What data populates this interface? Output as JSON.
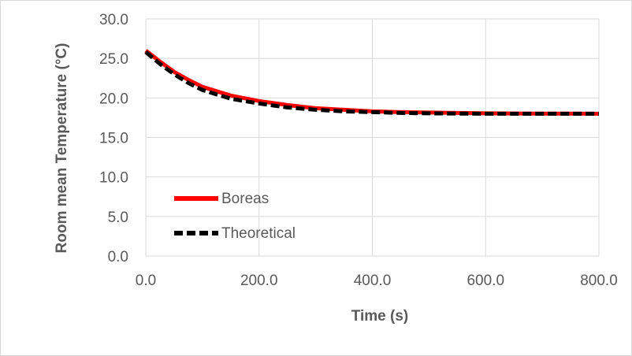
{
  "chart_data": {
    "type": "line",
    "xlabel": "Time (s)",
    "ylabel": "Room mean Temperature (°C)",
    "xlim": [
      0,
      800
    ],
    "ylim": [
      0,
      30
    ],
    "xticks": [
      "0.0",
      "200.0",
      "400.0",
      "600.0",
      "800.0"
    ],
    "yticks": [
      "0.0",
      "5.0",
      "10.0",
      "15.0",
      "20.0",
      "25.0",
      "30.0"
    ],
    "grid": true,
    "legend_position": "left",
    "series": [
      {
        "name": "Boreas",
        "color": "#ff0000",
        "style": "solid",
        "x": [
          0,
          25,
          50,
          75,
          100,
          150,
          200,
          250,
          300,
          350,
          400,
          450,
          500,
          550,
          600,
          650,
          700,
          750,
          800
        ],
        "y": [
          26.0,
          24.6,
          23.3,
          22.3,
          21.4,
          20.3,
          19.6,
          19.1,
          18.7,
          18.5,
          18.3,
          18.2,
          18.15,
          18.1,
          18.05,
          18.03,
          18.02,
          18.01,
          18.0
        ]
      },
      {
        "name": "Theoretical",
        "color": "#000000",
        "style": "dashed",
        "x": [
          0,
          25,
          50,
          75,
          100,
          150,
          200,
          250,
          300,
          350,
          400,
          450,
          500,
          550,
          600,
          650,
          700,
          750,
          800
        ],
        "y": [
          25.8,
          24.3,
          23.0,
          21.9,
          21.0,
          19.9,
          19.3,
          18.8,
          18.5,
          18.3,
          18.2,
          18.1,
          18.05,
          18.02,
          18.0,
          18.0,
          18.0,
          18.0,
          18.0
        ]
      }
    ]
  }
}
